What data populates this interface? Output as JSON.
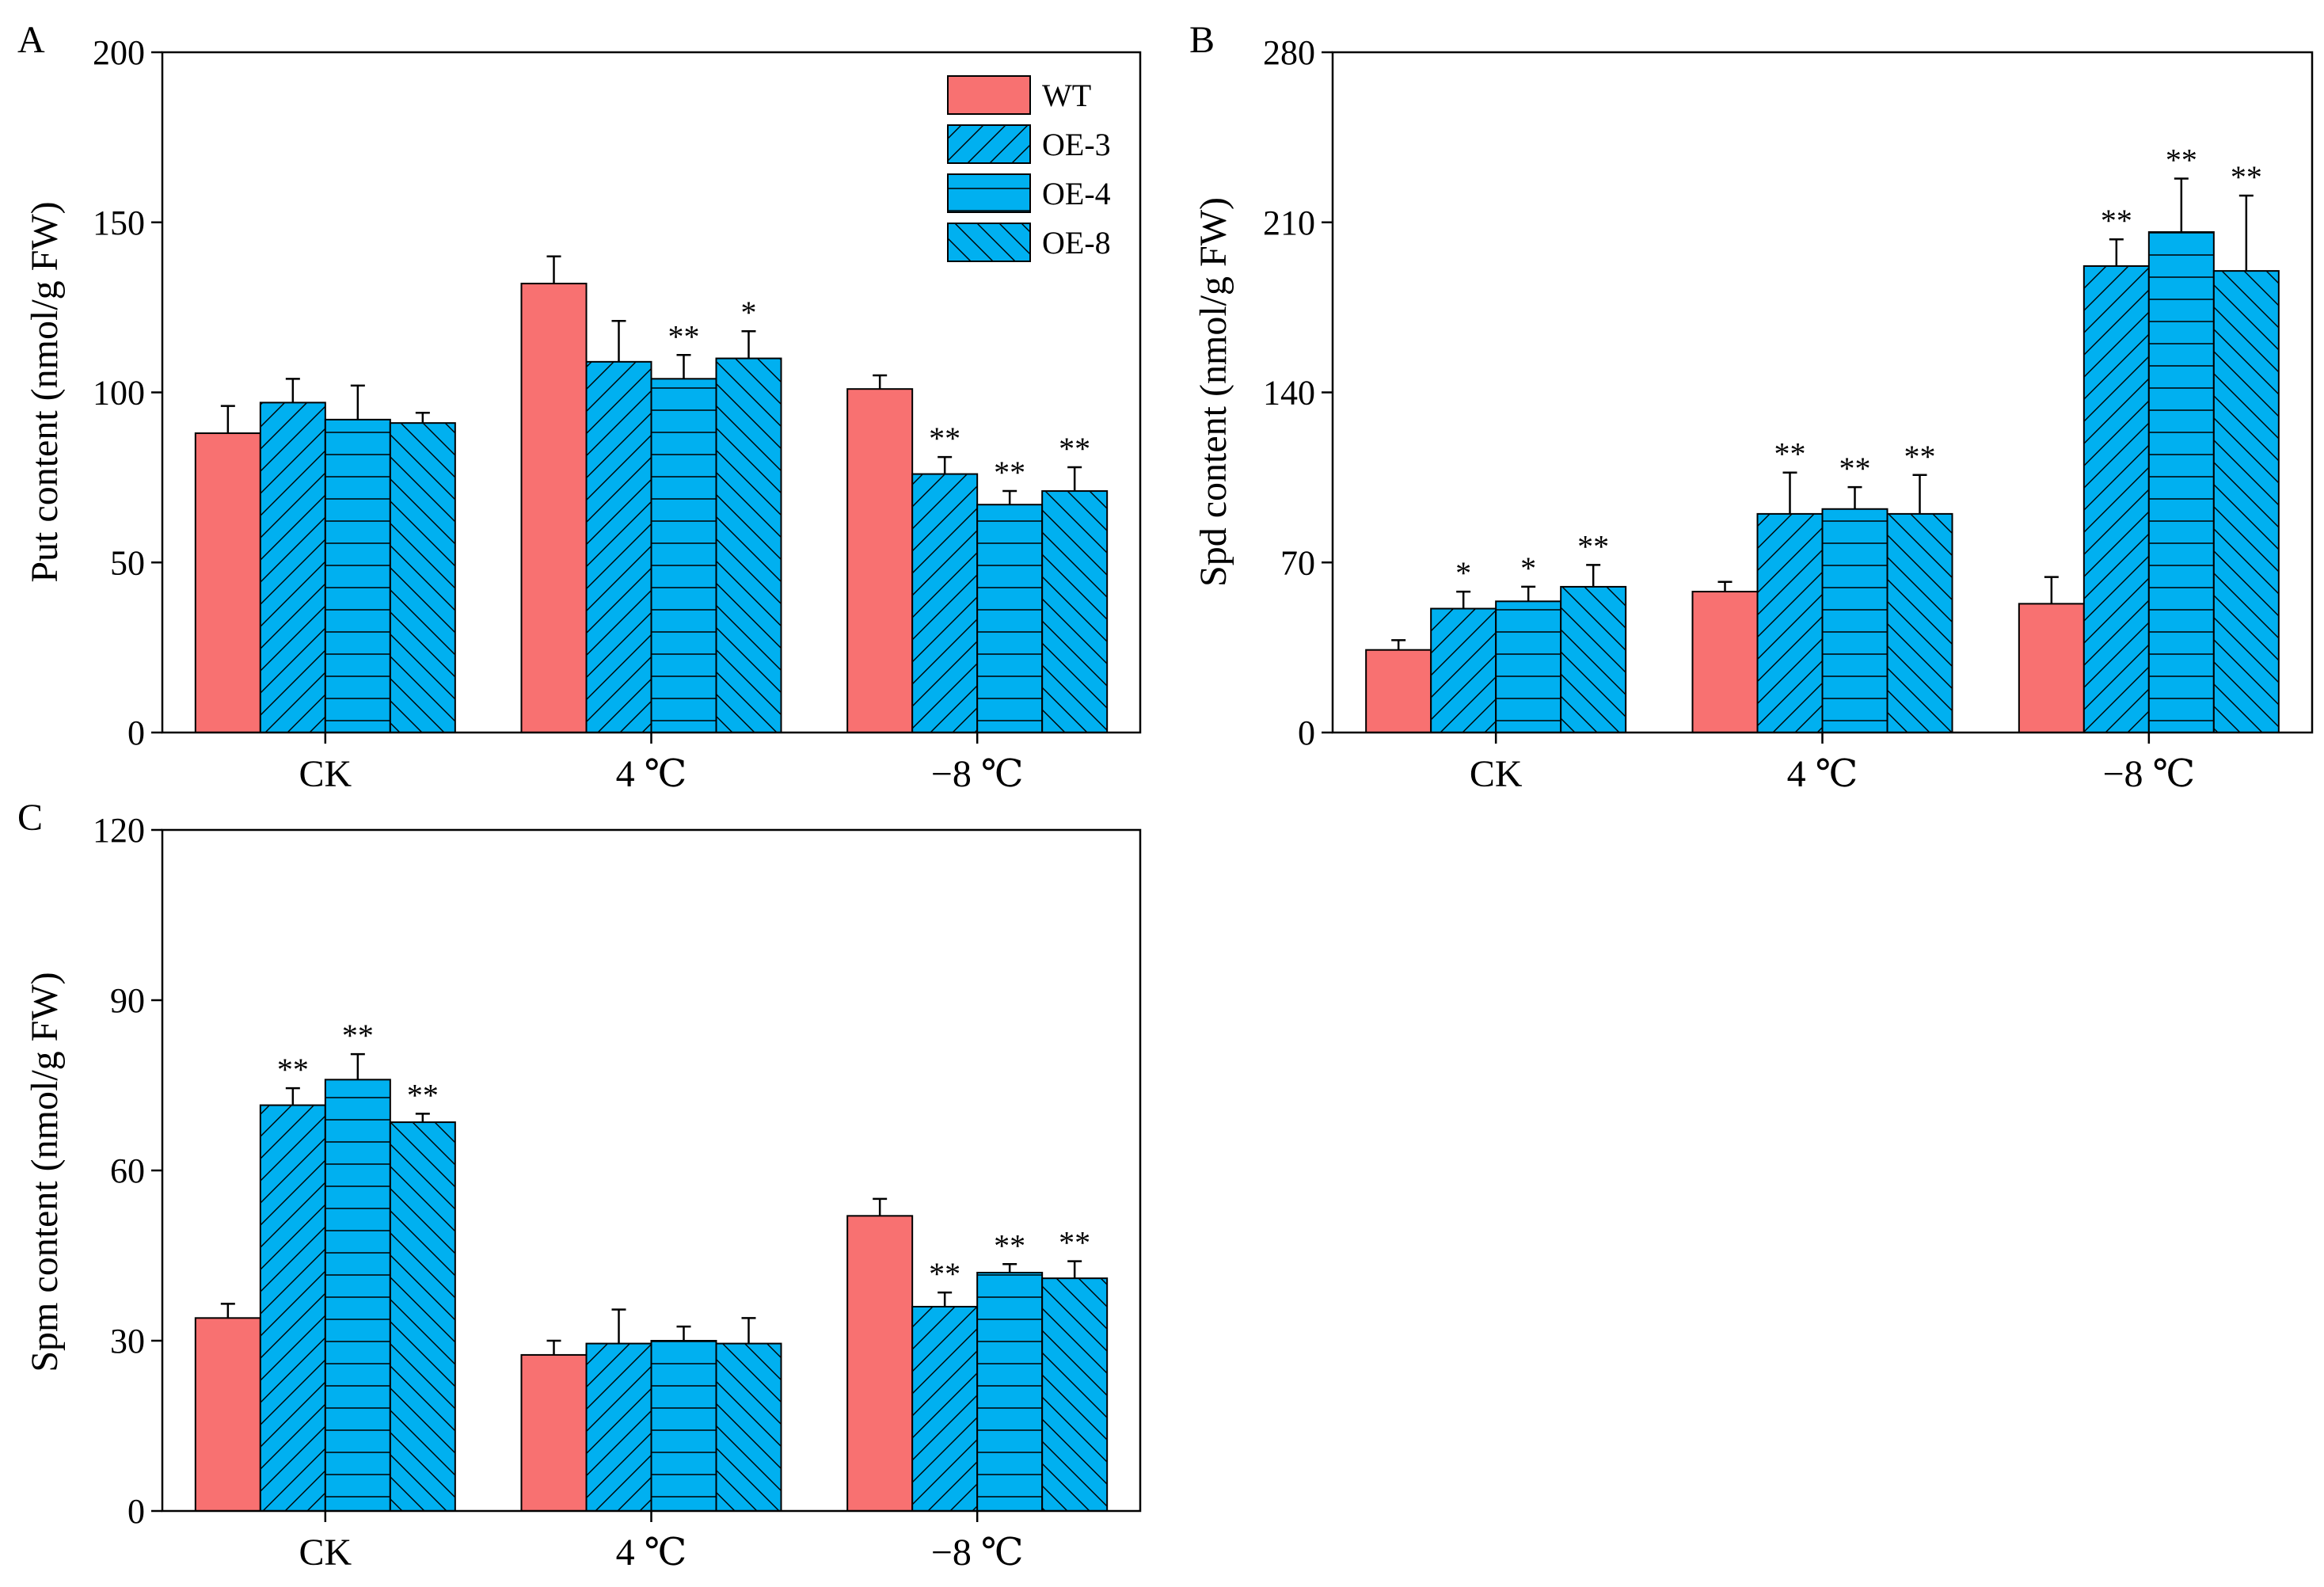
{
  "colors": {
    "WT": "#f87171",
    "OE": "#00b0f0",
    "stroke": "#000000"
  },
  "legend": [
    {
      "name": "WT",
      "pattern": "solid"
    },
    {
      "name": "OE-3",
      "pattern": "diag-up"
    },
    {
      "name": "OE-4",
      "pattern": "horizontal"
    },
    {
      "name": "OE-8",
      "pattern": "diag-down"
    }
  ],
  "chart_data": [
    {
      "panel": "A",
      "type": "bar",
      "title": "",
      "xlabel": "",
      "ylabel": "Put content (nmol/g FW)",
      "ylim": [
        0,
        200
      ],
      "yticks": [
        0,
        50,
        100,
        150,
        200
      ],
      "categories": [
        "CK",
        "4 ℃",
        "−8 ℃"
      ],
      "series": [
        {
          "name": "WT",
          "values": [
            88,
            132,
            101
          ],
          "errors": [
            8,
            8,
            4
          ],
          "sig": [
            "",
            "",
            ""
          ]
        },
        {
          "name": "OE-3",
          "values": [
            97,
            109,
            76
          ],
          "errors": [
            7,
            12,
            5
          ],
          "sig": [
            "",
            "",
            "**"
          ]
        },
        {
          "name": "OE-4",
          "values": [
            92,
            104,
            67
          ],
          "errors": [
            10,
            7,
            4
          ],
          "sig": [
            "",
            "**",
            "**"
          ]
        },
        {
          "name": "OE-8",
          "values": [
            91,
            110,
            71
          ],
          "errors": [
            3,
            8,
            7
          ],
          "sig": [
            "",
            "*",
            "**"
          ]
        }
      ],
      "legend": "top-right"
    },
    {
      "panel": "B",
      "type": "bar",
      "title": "",
      "xlabel": "",
      "ylabel": "Spd content (nmol/g FW)",
      "ylim": [
        0,
        280
      ],
      "yticks": [
        0,
        70,
        140,
        210,
        280
      ],
      "categories": [
        "CK",
        "4 ℃",
        "−8 ℃"
      ],
      "series": [
        {
          "name": "WT",
          "values": [
            34,
            58,
            53
          ],
          "errors": [
            4,
            4,
            11
          ],
          "sig": [
            "",
            "",
            ""
          ]
        },
        {
          "name": "OE-3",
          "values": [
            51,
            90,
            192
          ],
          "errors": [
            7,
            17,
            11
          ],
          "sig": [
            "*",
            "**",
            "**"
          ]
        },
        {
          "name": "OE-4",
          "values": [
            54,
            92,
            206
          ],
          "errors": [
            6,
            9,
            22
          ],
          "sig": [
            "*",
            "**",
            "**"
          ]
        },
        {
          "name": "OE-8",
          "values": [
            60,
            90,
            190
          ],
          "errors": [
            9,
            16,
            31
          ],
          "sig": [
            "**",
            "**",
            "**"
          ]
        }
      ]
    },
    {
      "panel": "C",
      "type": "bar",
      "title": "",
      "xlabel": "",
      "ylabel": "Spm content (nmol/g FW)",
      "ylim": [
        0,
        120
      ],
      "yticks": [
        0,
        30,
        60,
        90,
        120
      ],
      "categories": [
        "CK",
        "4 ℃",
        "−8 ℃"
      ],
      "series": [
        {
          "name": "WT",
          "values": [
            34,
            27.5,
            52
          ],
          "errors": [
            2.5,
            2.5,
            3
          ],
          "sig": [
            "",
            "",
            ""
          ]
        },
        {
          "name": "OE-3",
          "values": [
            71.5,
            29.5,
            36
          ],
          "errors": [
            3,
            6,
            2.5
          ],
          "sig": [
            "**",
            "",
            "**"
          ]
        },
        {
          "name": "OE-4",
          "values": [
            76,
            30,
            42
          ],
          "errors": [
            4.5,
            2.5,
            1.5
          ],
          "sig": [
            "**",
            "",
            "**"
          ]
        },
        {
          "name": "OE-8",
          "values": [
            68.5,
            29.5,
            41
          ],
          "errors": [
            1.5,
            4.5,
            3
          ],
          "sig": [
            "**",
            "",
            "**"
          ]
        }
      ]
    }
  ]
}
